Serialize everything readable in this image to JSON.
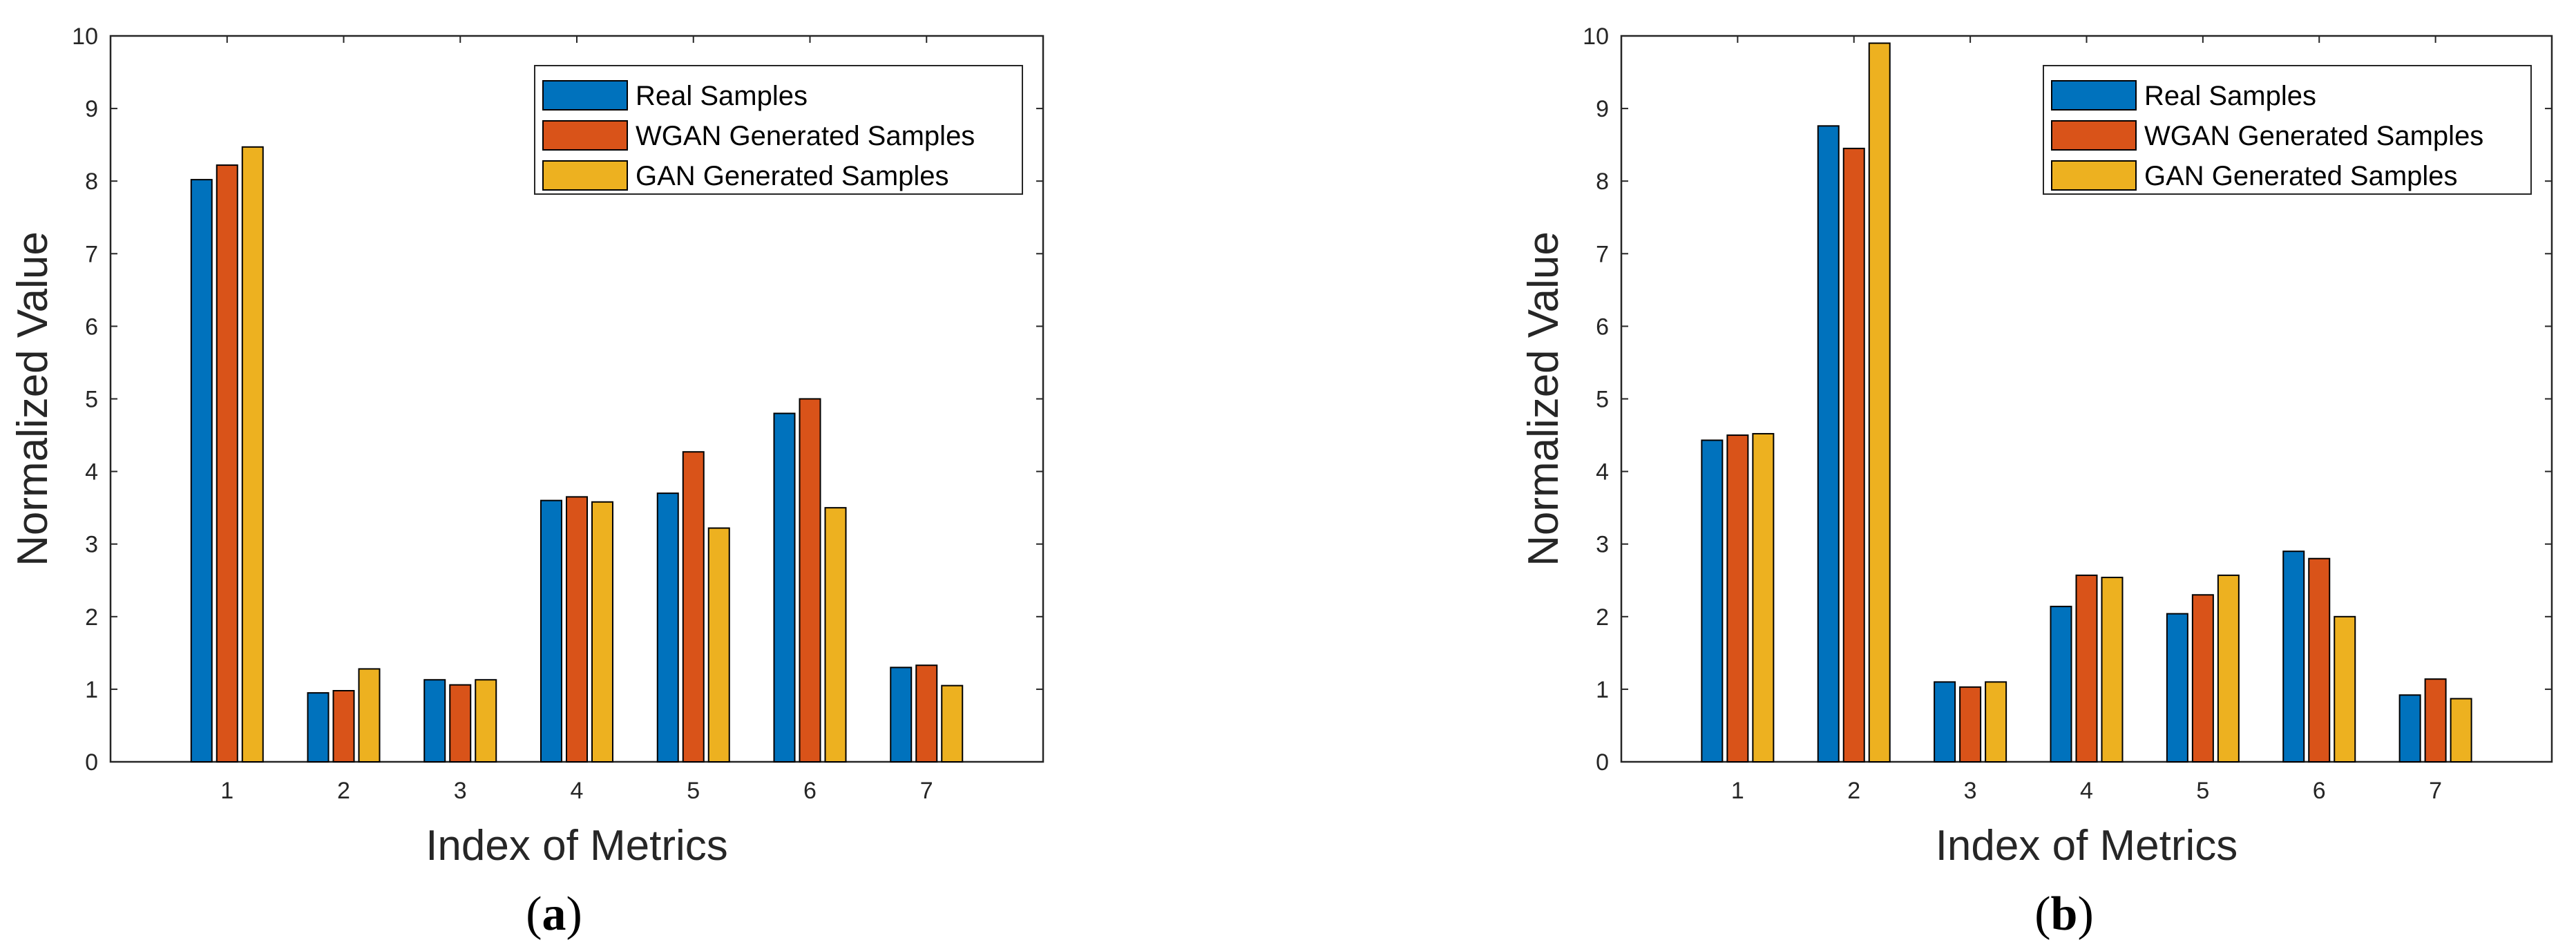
{
  "figure": {
    "colors": {
      "real": "#0072BD",
      "wgan": "#D95319",
      "gan": "#EDB120",
      "axis": "#262626",
      "bar_edge": "#000000"
    }
  },
  "chart_data": [
    {
      "type": "bar",
      "panel": "a",
      "panel_letter": "a",
      "categories": [
        "1",
        "2",
        "3",
        "4",
        "5",
        "6",
        "7"
      ],
      "series": [
        {
          "name": "Real Samples",
          "values": [
            8.02,
            0.95,
            1.13,
            3.6,
            3.7,
            4.8,
            1.3
          ]
        },
        {
          "name": "WGAN Generated Samples",
          "values": [
            8.22,
            0.98,
            1.06,
            3.65,
            4.27,
            5.0,
            1.33
          ]
        },
        {
          "name": "GAN Generated Samples",
          "values": [
            8.47,
            1.28,
            1.13,
            3.58,
            3.22,
            3.5,
            1.05
          ]
        }
      ],
      "title": "",
      "xlabel": "Index of Metrics",
      "ylabel": "Normalized Value",
      "ylim": [
        0,
        10
      ],
      "yticks": [
        "0",
        "1",
        "2",
        "3",
        "4",
        "5",
        "6",
        "7",
        "8",
        "9",
        "10"
      ],
      "grid": false,
      "legend_position": "top-right"
    },
    {
      "type": "bar",
      "panel": "b",
      "panel_letter": "b",
      "categories": [
        "1",
        "2",
        "3",
        "4",
        "5",
        "6",
        "7"
      ],
      "series": [
        {
          "name": "Real Samples",
          "values": [
            4.43,
            8.76,
            1.1,
            2.14,
            2.04,
            2.9,
            0.92
          ]
        },
        {
          "name": "WGAN Generated Samples",
          "values": [
            4.5,
            8.45,
            1.03,
            2.57,
            2.3,
            2.8,
            1.14
          ]
        },
        {
          "name": "GAN Generated Samples",
          "values": [
            4.52,
            9.9,
            1.1,
            2.54,
            2.57,
            2.0,
            0.87
          ]
        }
      ],
      "title": "",
      "xlabel": "Index of Metrics",
      "ylabel": "Normalized Value",
      "ylim": [
        0,
        10
      ],
      "yticks": [
        "0",
        "1",
        "2",
        "3",
        "4",
        "5",
        "6",
        "7",
        "8",
        "9",
        "10"
      ],
      "grid": false,
      "legend_position": "top-right"
    }
  ]
}
